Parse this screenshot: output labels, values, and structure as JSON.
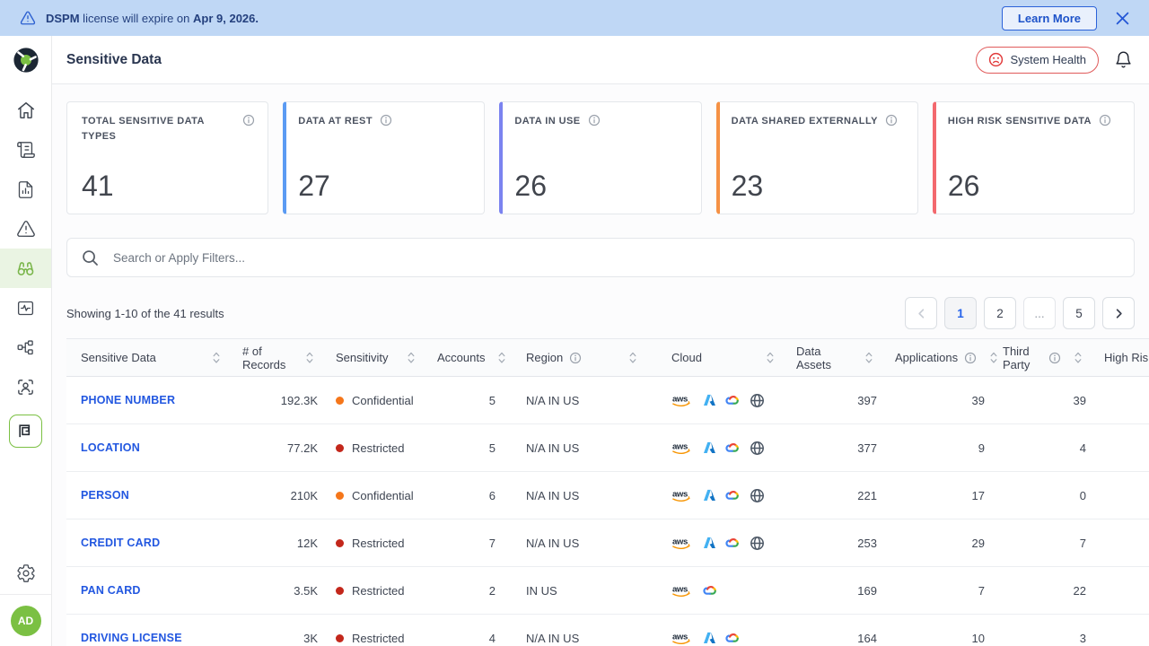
{
  "banner": {
    "message_parts": [
      {
        "text": "DSPM",
        "bold": true
      },
      {
        "text": " license will expire on ",
        "bold": false
      },
      {
        "text": "Apr 9, 2026.",
        "bold": true
      }
    ],
    "learn_more_label": "Learn More"
  },
  "header": {
    "title": "Sensitive Data",
    "system_health_label": "System Health"
  },
  "sidebar": {
    "avatar_initials": "AD",
    "items": [
      {
        "id": "home",
        "icon": "home-icon",
        "active": false,
        "boxed": false
      },
      {
        "id": "policies",
        "icon": "scroll-icon",
        "active": false,
        "boxed": false
      },
      {
        "id": "reports",
        "icon": "report-chart-icon",
        "active": false,
        "boxed": false
      },
      {
        "id": "alerts",
        "icon": "alert-triangle-icon",
        "active": false,
        "boxed": false
      },
      {
        "id": "sensitive-data",
        "icon": "binoculars-icon",
        "active": true,
        "boxed": false
      },
      {
        "id": "monitoring",
        "icon": "activity-monitor-icon",
        "active": false,
        "boxed": false
      },
      {
        "id": "data-flow",
        "icon": "flow-icon",
        "active": false,
        "boxed": false
      },
      {
        "id": "identity",
        "icon": "user-scan-icon",
        "active": false,
        "boxed": false
      },
      {
        "id": "integrations",
        "icon": "spiral-icon",
        "active": false,
        "boxed": true
      }
    ]
  },
  "stat_cards": [
    {
      "label": "TOTAL SENSITIVE DATA TYPES",
      "value": "41",
      "accent": ""
    },
    {
      "label": "DATA AT REST",
      "value": "27",
      "accent": "#5b9bf3"
    },
    {
      "label": "DATA IN USE",
      "value": "26",
      "accent": "#7b83f0"
    },
    {
      "label": "DATA SHARED EXTERNALLY",
      "value": "23",
      "accent": "#f59144"
    },
    {
      "label": "HIGH RISK SENSITIVE DATA",
      "value": "26",
      "accent": "#f3696e"
    }
  ],
  "search": {
    "placeholder": "Search or Apply Filters..."
  },
  "results_summary": "Showing 1-10 of the 41 results",
  "pagination": {
    "pages": [
      "1",
      "2",
      "...",
      "5"
    ],
    "active_page": "1"
  },
  "table": {
    "columns": [
      {
        "key": "name",
        "label": "Sensitive Data",
        "sortable": true,
        "info": false
      },
      {
        "key": "records",
        "label": "# of Records",
        "sortable": true,
        "info": false
      },
      {
        "key": "sensitivity",
        "label": "Sensitivity",
        "sortable": true,
        "info": false
      },
      {
        "key": "accounts",
        "label": "Accounts",
        "sortable": true,
        "info": false
      },
      {
        "key": "region",
        "label": "Region",
        "sortable": true,
        "info": true
      },
      {
        "key": "cloud",
        "label": "Cloud",
        "sortable": true,
        "info": false
      },
      {
        "key": "data_assets",
        "label": "Data Assets",
        "sortable": true,
        "info": false
      },
      {
        "key": "applications",
        "label": "Applications",
        "sortable": true,
        "info": true
      },
      {
        "key": "third_party",
        "label": "Third Party",
        "sortable": true,
        "info": true
      },
      {
        "key": "high_risk",
        "label": "High Risk",
        "sortable": false,
        "info": false
      }
    ],
    "sensitivity_colors": {
      "Confidential": "#f5761a",
      "Restricted": "#c3271b"
    },
    "rows": [
      {
        "name": "PHONE NUMBER",
        "records": "192.3K",
        "sensitivity": "Confidential",
        "accounts": "5",
        "region": "N/A IN US",
        "clouds": [
          "aws",
          "azure",
          "gcp",
          "globe"
        ],
        "data_assets": "397",
        "applications": "39",
        "third_party": "39"
      },
      {
        "name": "LOCATION",
        "records": "77.2K",
        "sensitivity": "Restricted",
        "accounts": "5",
        "region": "N/A IN US",
        "clouds": [
          "aws",
          "azure",
          "gcp",
          "globe"
        ],
        "data_assets": "377",
        "applications": "9",
        "third_party": "4"
      },
      {
        "name": "PERSON",
        "records": "210K",
        "sensitivity": "Confidential",
        "accounts": "6",
        "region": "N/A IN US",
        "clouds": [
          "aws",
          "azure",
          "gcp",
          "globe"
        ],
        "data_assets": "221",
        "applications": "17",
        "third_party": "0"
      },
      {
        "name": "CREDIT CARD",
        "records": "12K",
        "sensitivity": "Restricted",
        "accounts": "7",
        "region": "N/A IN US",
        "clouds": [
          "aws",
          "azure",
          "gcp",
          "globe"
        ],
        "data_assets": "253",
        "applications": "29",
        "third_party": "7"
      },
      {
        "name": "PAN CARD",
        "records": "3.5K",
        "sensitivity": "Restricted",
        "accounts": "2",
        "region": "IN US",
        "clouds": [
          "aws",
          "gcp"
        ],
        "data_assets": "169",
        "applications": "7",
        "third_party": "22"
      },
      {
        "name": "DRIVING LICENSE",
        "records": "3K",
        "sensitivity": "Restricted",
        "accounts": "4",
        "region": "N/A IN US",
        "clouds": [
          "aws",
          "azure",
          "gcp"
        ],
        "data_assets": "164",
        "applications": "10",
        "third_party": "3"
      }
    ]
  }
}
